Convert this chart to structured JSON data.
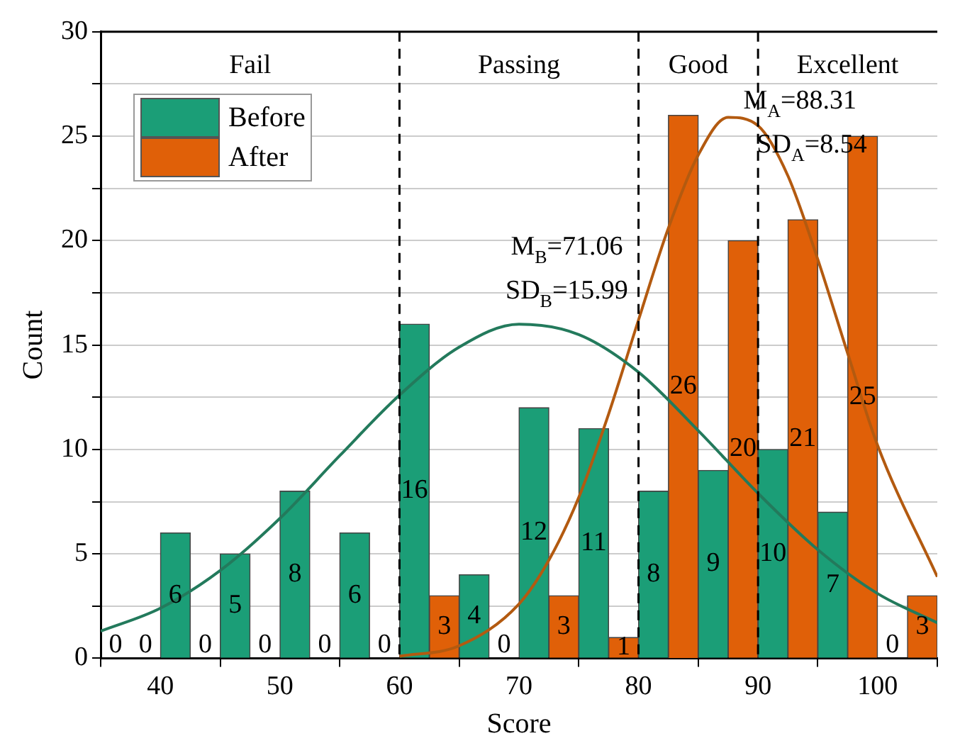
{
  "chart_data": {
    "type": "histogram",
    "xlabel": "Score",
    "ylabel": "Count",
    "bins": [
      35,
      40,
      45,
      50,
      55,
      60,
      65,
      70,
      75,
      80,
      85,
      90,
      95,
      100,
      105
    ],
    "series": [
      {
        "name": "Before",
        "color": "#1b9e77",
        "values": [
          0,
          6,
          5,
          8,
          6,
          16,
          4,
          12,
          11,
          8,
          9,
          10,
          7,
          0
        ],
        "value_labels": [
          "0",
          "6",
          "5",
          "8",
          "6",
          "16",
          "4",
          "12",
          "11",
          "8",
          "9",
          "10",
          "7",
          "0"
        ]
      },
      {
        "name": "After",
        "color": "#e06008",
        "values": [
          0,
          0,
          0,
          0,
          0,
          3,
          0,
          3,
          1,
          26,
          20,
          21,
          25,
          3
        ],
        "value_labels": [
          "0",
          "0",
          "0",
          "0",
          "0",
          "3",
          "0",
          "3",
          "1",
          "26",
          "20",
          "21",
          "25",
          "3"
        ]
      },
      {
        "type": "line",
        "color": "#237a5c",
        "x": [
          35,
          40,
          45,
          50,
          55,
          60,
          65,
          70,
          75,
          80,
          85,
          90,
          95,
          100,
          105
        ],
        "values": [
          1.3,
          2.4,
          4.2,
          6.7,
          9.7,
          12.6,
          14.9,
          16.0,
          15.5,
          13.7,
          10.9,
          7.9,
          5.2,
          3.1,
          1.7
        ]
      },
      {
        "type": "line",
        "color": "#b35a10",
        "x": [
          60,
          65,
          70,
          72.5,
          75,
          77.5,
          80,
          82.5,
          85,
          87.5,
          90,
          92.5,
          95,
          97.5,
          100,
          105
        ],
        "values": [
          0.1,
          0.6,
          2.6,
          4.7,
          7.7,
          11.7,
          16.2,
          20.6,
          24.1,
          25.9,
          25.5,
          23.1,
          19.1,
          14.6,
          10.2,
          3.9
        ]
      }
    ],
    "xlim": [
      35,
      105
    ],
    "xticks": [
      40,
      50,
      60,
      70,
      80,
      90,
      100
    ],
    "ylim": [
      0,
      30
    ],
    "yticks": [
      0,
      {
        "value": 2.5,
        "label": null
      },
      5,
      {
        "value": 7.5,
        "label": null
      },
      10,
      {
        "value": 12.5,
        "label": null
      },
      15,
      {
        "value": 17.5,
        "label": null
      },
      20,
      {
        "value": 22.5,
        "label": null
      },
      25,
      {
        "value": 27.5,
        "label": null
      },
      30
    ],
    "grid": "y",
    "legend": "top left",
    "ref_lines": [
      {
        "axis": "x",
        "value": 60,
        "label": null,
        "color": "#000000",
        "line_style": "dashed"
      },
      {
        "axis": "x",
        "value": 80,
        "label": null,
        "color": "#000000",
        "line_style": "dashed"
      },
      {
        "axis": "x",
        "value": 90,
        "label": null,
        "color": "#000000",
        "line_style": "dashed"
      }
    ],
    "annotations": [
      "Fail",
      "Passing",
      "Good",
      "Excellent",
      "M$_{B}$=71.06",
      "SD$_{B}$=15.99",
      "M$_{A}$=88.31",
      "SD$_{A}$=8.54"
    ]
  }
}
